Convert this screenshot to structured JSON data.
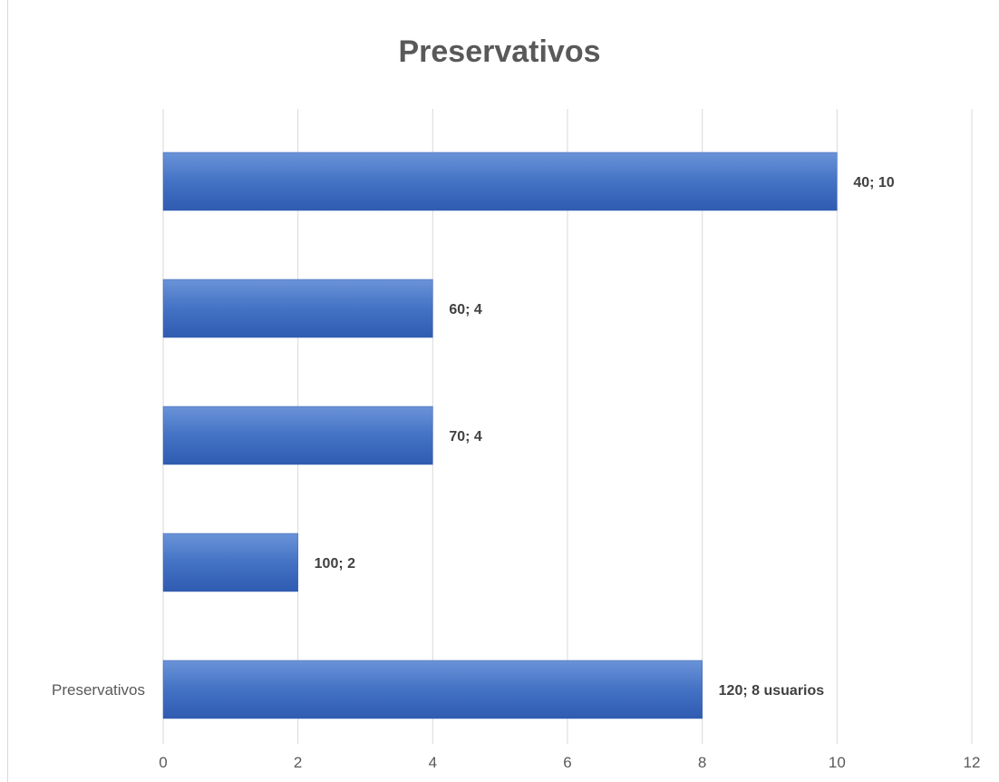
{
  "chart_data": {
    "type": "bar",
    "orientation": "horizontal",
    "title": "Preservativos",
    "xlabel": "",
    "ylabel": "",
    "xlim": [
      0,
      12
    ],
    "x_ticks": [
      "0",
      "2",
      "4",
      "6",
      "8",
      "10",
      "12"
    ],
    "grid": true,
    "legend": "none",
    "categories": [
      "Preservativos",
      "",
      "",
      "",
      ""
    ],
    "values": [
      8,
      2,
      4,
      4,
      10
    ],
    "data_labels": [
      "120; 8 usuarios",
      "100; 2",
      "70; 4",
      "60; 4",
      "40; 10"
    ],
    "colors": {
      "bar": "#4472c4",
      "bar_light": "#6a93d8",
      "bar_dark": "#2f5bb1",
      "grid": "#d9d9d9",
      "text": "#595959"
    }
  }
}
